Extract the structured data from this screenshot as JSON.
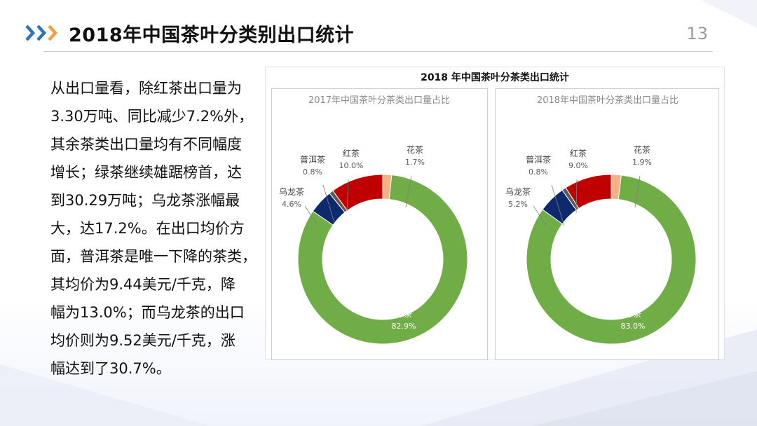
{
  "slide": {
    "title": "2018年中国茶叶分类别出口统计",
    "page_number": "13",
    "body_lines": [
      "从出口量看，除红茶出口量为",
      "3.30万吨、同比减少7.2%外，",
      "其余茶类出口量均有不同幅度",
      "增长；绿茶继续雄踞榜首，达",
      "到30.29万吨；乌龙茶涨幅最",
      "大，达17.2%。在出口均价方",
      "面，普洱茶是唯一下降的茶类，",
      "其均价为9.44美元/千克，降",
      "幅为13.0%；而乌龙茶的出口",
      "均价则为9.52美元/千克，涨",
      "幅达到了30.7%。"
    ]
  },
  "colors": {
    "green": "#70ad47",
    "navy": "#0e2a6e",
    "red": "#c00000",
    "peach": "#f4b183",
    "accent_blue": "#2e75b6",
    "accent_orange": "#f0a040"
  },
  "chart_data": {
    "title": "2018 年中国茶叶分茶类出口统计",
    "charts": [
      {
        "type": "donut",
        "title": "2017年中国茶叶分茶类出口量占比",
        "slices": [
          {
            "name": "花茶",
            "value": 1.7,
            "label": "1.7%",
            "color": "#f4b183"
          },
          {
            "name": "绿茶",
            "value": 82.9,
            "label": "82.9%",
            "color": "#70ad47"
          },
          {
            "name": "乌龙茶",
            "value": 4.6,
            "label": "4.6%",
            "color": "#0e2a6e"
          },
          {
            "name": "普洱茶",
            "value": 0.8,
            "label": "0.8%",
            "color": "#595959"
          },
          {
            "name": "红茶",
            "value": 10.0,
            "label": "10.0%",
            "color": "#c00000"
          }
        ]
      },
      {
        "type": "donut",
        "title": "2018年中国茶叶分茶类出口量占比",
        "slices": [
          {
            "name": "花茶",
            "value": 1.9,
            "label": "1.9%",
            "color": "#f4b183"
          },
          {
            "name": "绿茶",
            "value": 83.0,
            "label": "83.0%",
            "color": "#70ad47"
          },
          {
            "name": "乌龙茶",
            "value": 5.2,
            "label": "5.2%",
            "color": "#0e2a6e"
          },
          {
            "name": "普洱茶",
            "value": 0.8,
            "label": "0.8%",
            "color": "#595959"
          },
          {
            "name": "红茶",
            "value": 9.0,
            "label": "9.0%",
            "color": "#c00000"
          }
        ]
      }
    ]
  }
}
